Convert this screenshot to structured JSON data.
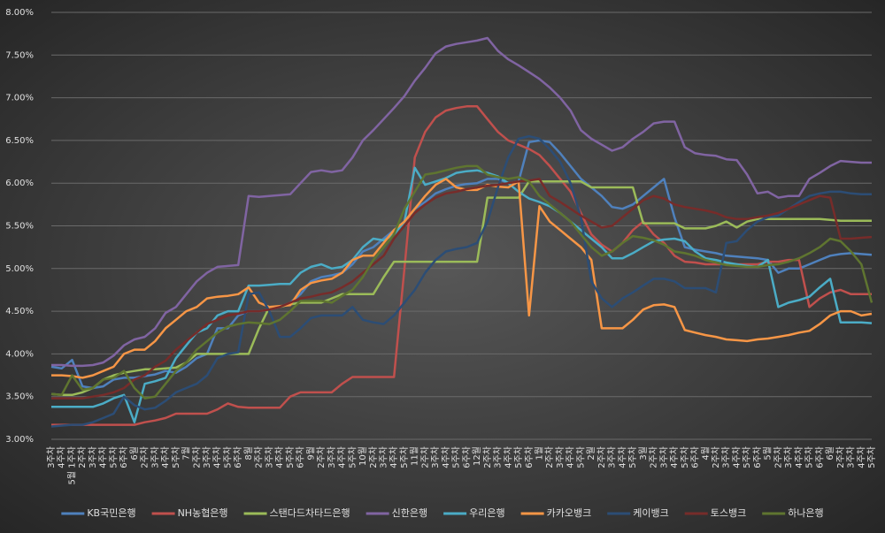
{
  "chart_data": {
    "type": "line",
    "categories": [
      "3주차",
      "4주차",
      "5월 1주차",
      "2주차",
      "3주차",
      "4주차",
      "5주차",
      "6주차",
      "6월",
      "2주차",
      "3주차",
      "4주차",
      "5주차",
      "7월",
      "2주차",
      "3주차",
      "4주차",
      "5주차",
      "6주차",
      "8월",
      "2주차",
      "3주차",
      "4주차",
      "5주차",
      "6주차",
      "9월",
      "2주차",
      "3주차",
      "4주차",
      "5주차",
      "10월",
      "2주차",
      "3주차",
      "4주차",
      "5주차",
      "11월",
      "2주차",
      "3주차",
      "4주차",
      "5주차",
      "6주차",
      "12월",
      "2주차",
      "3주차",
      "4주차",
      "5주차",
      "6주차",
      "1월",
      "2주차",
      "3주차",
      "4주차",
      "5주차",
      "2월",
      "2주차",
      "3주차",
      "4주차",
      "5주차",
      "3월",
      "2주차",
      "3주차",
      "4주차",
      "5주차",
      "6주차",
      "4월",
      "2주차",
      "3주차",
      "4주차",
      "5주차",
      "6주차",
      "5월",
      "2주차",
      "3주차",
      "4주차",
      "5주차",
      "6주차",
      "6월",
      "2주차",
      "3주차",
      "4주차",
      "5주차"
    ],
    "ylim": [
      3,
      8
    ],
    "yticks": [
      {
        "value": 3,
        "label": "3.00%"
      },
      {
        "value": 3.5,
        "label": "3.50%"
      },
      {
        "value": 4,
        "label": "4.00%"
      },
      {
        "value": 4.5,
        "label": "4.50%"
      },
      {
        "value": 5,
        "label": "5.00%"
      },
      {
        "value": 5.5,
        "label": "5.50%"
      },
      {
        "value": 6,
        "label": "6.00%"
      },
      {
        "value": 6.5,
        "label": "6.50%"
      },
      {
        "value": 7,
        "label": "7.00%"
      },
      {
        "value": 7.5,
        "label": "7.50%"
      },
      {
        "value": 8,
        "label": "8.00%"
      }
    ],
    "grid": true,
    "legend": "bottom",
    "series": [
      {
        "name": "KB국민은행",
        "color": "#4f81bd",
        "values": [
          3.85,
          3.83,
          3.93,
          3.62,
          3.6,
          3.62,
          3.7,
          3.72,
          3.72,
          3.74,
          3.76,
          3.8,
          3.78,
          3.85,
          3.95,
          4.0,
          4.3,
          4.3,
          4.45,
          4.5,
          4.5,
          4.52,
          4.55,
          4.6,
          4.7,
          4.85,
          4.9,
          4.92,
          4.95,
          5.05,
          5.2,
          5.25,
          5.35,
          5.45,
          5.55,
          5.7,
          5.78,
          5.88,
          5.93,
          5.97,
          5.99,
          6.0,
          6.05,
          6.05,
          6.0,
          6.02,
          6.48,
          6.5,
          6.48,
          6.35,
          6.2,
          6.05,
          5.95,
          5.85,
          5.72,
          5.7,
          5.75,
          5.85,
          5.95,
          6.05,
          5.6,
          5.25,
          5.22,
          5.2,
          5.18,
          5.15,
          5.14,
          5.13,
          5.12,
          5.1,
          4.95,
          5.0,
          5.0,
          5.05,
          5.1,
          5.15,
          5.17,
          5.18,
          5.17,
          5.16
        ]
      },
      {
        "name": "NH농협은행",
        "color": "#c0504d",
        "values": [
          3.17,
          3.17,
          3.17,
          3.17,
          3.17,
          3.17,
          3.17,
          3.17,
          3.17,
          3.2,
          3.22,
          3.25,
          3.3,
          3.3,
          3.3,
          3.3,
          3.35,
          3.42,
          3.38,
          3.37,
          3.37,
          3.37,
          3.37,
          3.5,
          3.55,
          3.55,
          3.55,
          3.55,
          3.65,
          3.73,
          3.73,
          3.73,
          3.73,
          3.73,
          5.0,
          6.3,
          6.6,
          6.77,
          6.85,
          6.88,
          6.9,
          6.9,
          6.75,
          6.6,
          6.5,
          6.45,
          6.4,
          6.33,
          6.2,
          6.05,
          5.9,
          5.65,
          5.4,
          5.28,
          5.2,
          5.3,
          5.45,
          5.55,
          5.4,
          5.3,
          5.15,
          5.08,
          5.07,
          5.05,
          5.05,
          5.05,
          5.05,
          5.05,
          5.05,
          5.08,
          5.08,
          5.1,
          5.1,
          4.55,
          4.65,
          4.72,
          4.75,
          4.7,
          4.7,
          4.7
        ]
      },
      {
        "name": "스탠다드차타드은행",
        "color": "#9bbb59",
        "values": [
          3.53,
          3.52,
          3.52,
          3.55,
          3.6,
          3.7,
          3.75,
          3.78,
          3.8,
          3.82,
          3.82,
          3.83,
          3.84,
          3.9,
          4.0,
          4.0,
          4.0,
          4.0,
          4.0,
          4.0,
          4.3,
          4.55,
          4.55,
          4.58,
          4.6,
          4.6,
          4.6,
          4.65,
          4.7,
          4.7,
          4.7,
          4.7,
          4.9,
          5.08,
          5.08,
          5.08,
          5.08,
          5.08,
          5.08,
          5.08,
          5.08,
          5.08,
          5.83,
          5.83,
          5.83,
          5.83,
          6.02,
          6.02,
          6.02,
          6.02,
          6.02,
          6.02,
          5.95,
          5.95,
          5.95,
          5.95,
          5.95,
          5.53,
          5.53,
          5.53,
          5.53,
          5.47,
          5.47,
          5.47,
          5.5,
          5.55,
          5.48,
          5.55,
          5.58,
          5.58,
          5.58,
          5.58,
          5.58,
          5.58,
          5.58,
          5.57,
          5.56,
          5.56,
          5.56,
          5.56
        ]
      },
      {
        "name": "신한은행",
        "color": "#8064a2",
        "values": [
          3.87,
          3.87,
          3.86,
          3.86,
          3.87,
          3.9,
          3.98,
          4.1,
          4.17,
          4.2,
          4.3,
          4.48,
          4.55,
          4.7,
          4.85,
          4.95,
          5.02,
          5.03,
          5.04,
          5.85,
          5.84,
          5.85,
          5.86,
          5.87,
          6.0,
          6.13,
          6.15,
          6.13,
          6.15,
          6.3,
          6.5,
          6.62,
          6.75,
          6.88,
          7.02,
          7.2,
          7.35,
          7.52,
          7.6,
          7.63,
          7.65,
          7.67,
          7.7,
          7.55,
          7.45,
          7.38,
          7.3,
          7.22,
          7.12,
          7.0,
          6.85,
          6.62,
          6.52,
          6.45,
          6.38,
          6.42,
          6.52,
          6.6,
          6.7,
          6.72,
          6.72,
          6.42,
          6.35,
          6.33,
          6.32,
          6.28,
          6.27,
          6.1,
          5.88,
          5.9,
          5.83,
          5.85,
          5.85,
          6.05,
          6.12,
          6.2,
          6.26,
          6.25,
          6.24,
          6.24
        ]
      },
      {
        "name": "우리은행",
        "color": "#4bacc6",
        "values": [
          3.38,
          3.38,
          3.38,
          3.38,
          3.38,
          3.42,
          3.48,
          3.52,
          3.2,
          3.65,
          3.68,
          3.72,
          3.95,
          4.1,
          4.25,
          4.3,
          4.45,
          4.5,
          4.5,
          4.8,
          4.8,
          4.81,
          4.82,
          4.82,
          4.95,
          5.02,
          5.05,
          5.0,
          5.02,
          5.1,
          5.25,
          5.35,
          5.33,
          5.4,
          5.55,
          6.18,
          5.98,
          6.02,
          6.06,
          6.12,
          6.14,
          6.15,
          6.12,
          6.08,
          6.0,
          5.9,
          5.82,
          5.78,
          5.73,
          5.65,
          5.55,
          5.45,
          5.35,
          5.25,
          5.12,
          5.12,
          5.18,
          5.25,
          5.32,
          5.34,
          5.35,
          5.32,
          5.2,
          5.12,
          5.1,
          5.07,
          5.05,
          5.03,
          5.02,
          5.1,
          4.55,
          4.6,
          4.63,
          4.67,
          4.78,
          4.88,
          4.37,
          4.37,
          4.37,
          4.36
        ]
      },
      {
        "name": "카카오뱅크",
        "color": "#f79646",
        "values": [
          3.75,
          3.75,
          3.74,
          3.72,
          3.75,
          3.8,
          3.85,
          4.0,
          4.05,
          4.05,
          4.15,
          4.3,
          4.4,
          4.5,
          4.55,
          4.65,
          4.67,
          4.68,
          4.7,
          4.78,
          4.6,
          4.55,
          4.56,
          4.57,
          4.75,
          4.83,
          4.86,
          4.88,
          4.95,
          5.1,
          5.15,
          5.15,
          5.3,
          5.45,
          5.55,
          5.7,
          5.85,
          5.98,
          6.05,
          5.95,
          5.92,
          5.92,
          5.98,
          5.96,
          5.95,
          6.02,
          4.45,
          5.73,
          5.55,
          5.45,
          5.35,
          5.25,
          5.1,
          4.3,
          4.3,
          4.3,
          4.4,
          4.52,
          4.57,
          4.58,
          4.55,
          4.28,
          4.25,
          4.22,
          4.2,
          4.17,
          4.16,
          4.15,
          4.17,
          4.18,
          4.2,
          4.22,
          4.25,
          4.27,
          4.35,
          4.45,
          4.5,
          4.5,
          4.45,
          4.47
        ]
      },
      {
        "name": "케이뱅크",
        "color": "#2c4d75",
        "values": [
          3.15,
          3.16,
          3.17,
          3.17,
          3.2,
          3.25,
          3.3,
          3.5,
          3.4,
          3.35,
          3.37,
          3.45,
          3.55,
          3.6,
          3.65,
          3.75,
          3.95,
          4.0,
          4.02,
          4.7,
          4.72,
          4.5,
          4.2,
          4.2,
          4.3,
          4.42,
          4.45,
          4.45,
          4.45,
          4.55,
          4.4,
          4.37,
          4.35,
          4.45,
          4.6,
          4.75,
          4.95,
          5.1,
          5.2,
          5.23,
          5.25,
          5.3,
          5.55,
          5.95,
          6.3,
          6.52,
          6.55,
          6.52,
          6.4,
          6.25,
          6.0,
          5.6,
          4.85,
          4.65,
          4.55,
          4.65,
          4.72,
          4.8,
          4.88,
          4.88,
          4.85,
          4.77,
          4.77,
          4.77,
          4.72,
          5.3,
          5.32,
          5.45,
          5.55,
          5.6,
          5.62,
          5.7,
          5.78,
          5.85,
          5.88,
          5.9,
          5.9,
          5.88,
          5.87,
          5.87
        ]
      },
      {
        "name": "토스뱅크",
        "color": "#772c2a",
        "values": [
          3.48,
          3.48,
          3.48,
          3.48,
          3.5,
          3.52,
          3.55,
          3.6,
          3.7,
          3.75,
          3.85,
          3.92,
          4.05,
          4.15,
          4.25,
          4.35,
          4.4,
          4.45,
          4.47,
          4.5,
          4.5,
          4.52,
          4.55,
          4.6,
          4.65,
          4.67,
          4.7,
          4.72,
          4.78,
          4.85,
          4.95,
          5.05,
          5.15,
          5.35,
          5.5,
          5.65,
          5.75,
          5.83,
          5.88,
          5.9,
          5.93,
          5.95,
          5.97,
          5.98,
          6.0,
          6.02,
          6.03,
          6.05,
          5.85,
          5.78,
          5.7,
          5.62,
          5.55,
          5.48,
          5.5,
          5.6,
          5.7,
          5.8,
          5.85,
          5.82,
          5.75,
          5.72,
          5.7,
          5.68,
          5.65,
          5.6,
          5.58,
          5.58,
          5.6,
          5.62,
          5.65,
          5.7,
          5.75,
          5.8,
          5.85,
          5.83,
          5.35,
          5.35,
          5.36,
          5.37
        ]
      },
      {
        "name": "하나은행",
        "color": "#5f7530",
        "values": [
          3.53,
          3.52,
          3.75,
          3.58,
          3.6,
          3.7,
          3.72,
          3.8,
          3.6,
          3.48,
          3.5,
          3.65,
          3.8,
          3.9,
          4.05,
          4.15,
          4.25,
          4.32,
          4.35,
          4.37,
          4.36,
          4.35,
          4.4,
          4.5,
          4.62,
          4.62,
          4.62,
          4.6,
          4.68,
          4.75,
          4.9,
          5.1,
          5.25,
          5.4,
          5.7,
          5.9,
          6.1,
          6.12,
          6.15,
          6.18,
          6.2,
          6.2,
          6.1,
          6.07,
          6.05,
          6.07,
          6.02,
          5.85,
          5.75,
          5.65,
          5.55,
          5.4,
          5.25,
          5.15,
          5.2,
          5.3,
          5.38,
          5.36,
          5.33,
          5.28,
          5.2,
          5.18,
          5.15,
          5.1,
          5.07,
          5.04,
          5.03,
          5.02,
          5.02,
          5.04,
          5.05,
          5.08,
          5.12,
          5.18,
          5.25,
          5.35,
          5.32,
          5.2,
          5.05,
          4.6
        ]
      }
    ]
  }
}
